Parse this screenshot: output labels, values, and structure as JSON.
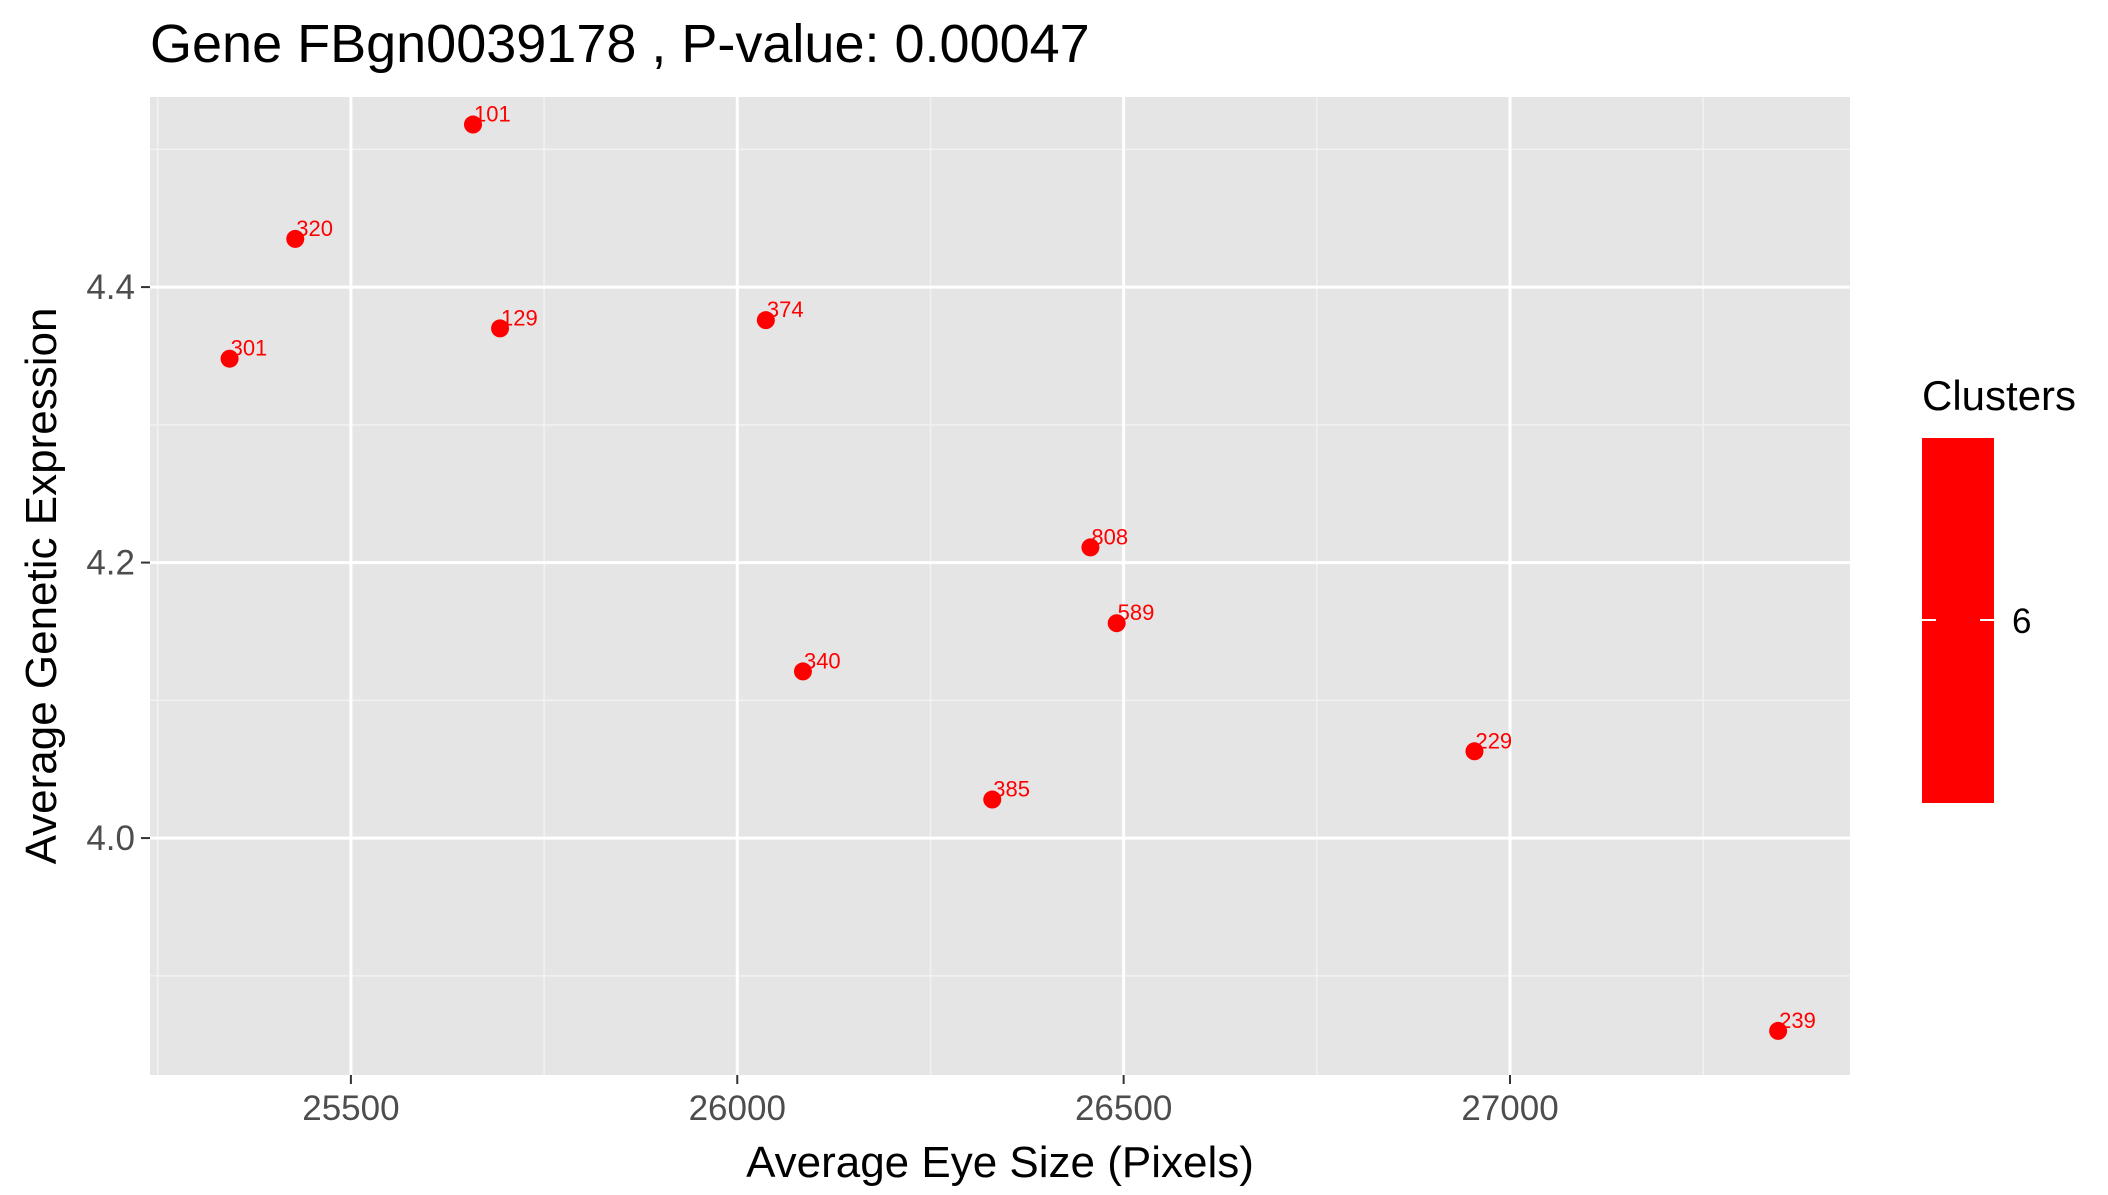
{
  "chart_data": {
    "type": "scatter",
    "title": "Gene FBgn0039178 , P-value: 0.00047",
    "xlabel": "Average Eye Size (Pixels)",
    "ylabel": "Average Genetic Expression",
    "xlim": [
      25240,
      27440
    ],
    "ylim": [
      3.828,
      4.538
    ],
    "x_ticks": [
      25500,
      26000,
      26500,
      27000
    ],
    "y_ticks": [
      4.0,
      4.2,
      4.4
    ],
    "x_tick_labels": [
      "25500",
      "26000",
      "26500",
      "27000"
    ],
    "y_tick_labels": [
      "4.0",
      "4.2",
      "4.4"
    ],
    "grid": true,
    "point_color": "#ff0000",
    "panel_background": "#e5e5e5",
    "points": [
      {
        "label": "101",
        "x": 25658,
        "y": 4.518
      },
      {
        "label": "320",
        "x": 25428,
        "y": 4.435
      },
      {
        "label": "301",
        "x": 25343,
        "y": 4.348
      },
      {
        "label": "129",
        "x": 25693,
        "y": 4.37
      },
      {
        "label": "374",
        "x": 26037,
        "y": 4.376
      },
      {
        "label": "808",
        "x": 26457,
        "y": 4.211
      },
      {
        "label": "589",
        "x": 26491,
        "y": 4.156
      },
      {
        "label": "340",
        "x": 26085,
        "y": 4.121
      },
      {
        "label": "385",
        "x": 26330,
        "y": 4.028
      },
      {
        "label": "229",
        "x": 26954,
        "y": 4.063
      },
      {
        "label": "239",
        "x": 27347,
        "y": 3.86
      }
    ],
    "legend": {
      "title": "Clusters",
      "labels": [
        "6"
      ],
      "colors": [
        "#ff0000"
      ],
      "placement": "right"
    }
  }
}
